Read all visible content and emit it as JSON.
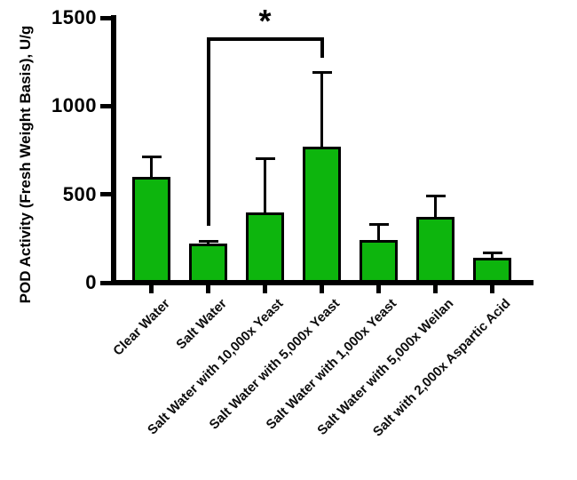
{
  "figure": {
    "background": "#ffffff",
    "axis_color": "#000000"
  },
  "chart_data": {
    "type": "bar",
    "title": "",
    "xlabel": "",
    "ylabel": "POD Activity (Fresh Weight Basis), U/g",
    "ylim": [
      0,
      1500
    ],
    "yticks": [
      0,
      500,
      1000,
      1500
    ],
    "grid": false,
    "legend": false,
    "categories": [
      "Clear Water",
      "Salt Water",
      "Salt Water with 10,000x Yeast",
      "Salt Water with 5,000x Yeast",
      "Salt Water with 1,000x Yeast",
      "Salt Water with 5,000x Weilan",
      "Salt with 2,000x Aspartic Acid"
    ],
    "values": [
      600,
      220,
      400,
      770,
      240,
      370,
      140
    ],
    "errors_plus": [
      110,
      15,
      300,
      420,
      90,
      120,
      30
    ],
    "bar_color": "#0db50d",
    "bar_border_color": "#000000",
    "error_color": "#000000",
    "significance": {
      "label": "*",
      "from_index": 1,
      "to_index": 3,
      "between": [
        "Salt Water",
        "Salt Water with 5,000x Yeast"
      ]
    }
  }
}
